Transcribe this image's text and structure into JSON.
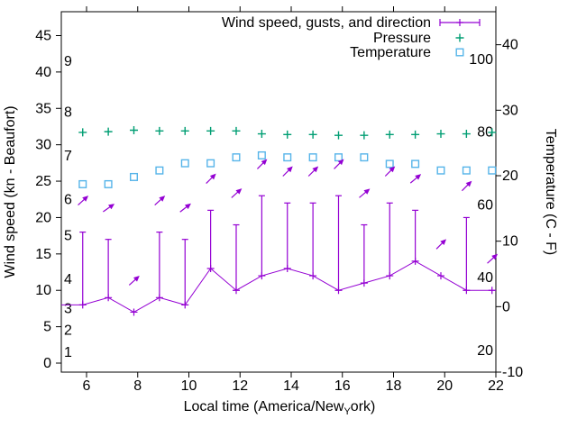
{
  "chart": {
    "legend": [
      {
        "label": "Wind speed, gusts, and direction",
        "marker": "errorbar-line",
        "color": "#9400d3"
      },
      {
        "label": "Pressure",
        "marker": "plus",
        "color": "#009e73"
      },
      {
        "label": "Temperature",
        "marker": "open-square",
        "color": "#56b4e9"
      }
    ],
    "xlabel_display": {
      "pre": "Local time (America/New",
      "subscript": "Y",
      "post": "ork)"
    },
    "ylabel_left": "Wind speed (kn - Beaufort)",
    "ylabel_right": "Temperature (C - F)"
  },
  "chart_data": {
    "type": "line",
    "title": "",
    "xlabel": "Local time (America/New_York)",
    "ylabel_left": "Wind speed (kn - Beaufort)",
    "ylabel_right": "Temperature (C - F)",
    "x_axis_hours_range": [
      5,
      22
    ],
    "x_ticks": [
      6,
      8,
      10,
      12,
      14,
      16,
      18,
      20,
      22
    ],
    "y_left_ticks_kn": [
      0,
      5,
      10,
      15,
      20,
      25,
      30,
      35,
      40,
      45
    ],
    "y_right_ticks_c": [
      -10,
      0,
      10,
      20,
      30,
      40
    ],
    "beaufort_scale_labels": [
      {
        "beaufort": "1",
        "kn": 1
      },
      {
        "beaufort": "2",
        "kn": 4
      },
      {
        "beaufort": "3",
        "kn": 7
      },
      {
        "beaufort": "4",
        "kn": 11
      },
      {
        "beaufort": "5",
        "kn": 17
      },
      {
        "beaufort": "6",
        "kn": 22
      },
      {
        "beaufort": "7",
        "kn": 28
      },
      {
        "beaufort": "8",
        "kn": 34
      },
      {
        "beaufort": "9",
        "kn": 41
      }
    ],
    "fahrenheit_scale_labels": [
      20,
      40,
      60,
      80,
      100
    ],
    "grid": "off",
    "legend_position": "top-right-inside",
    "points": {
      "hours": [
        5.85,
        6.85,
        7.85,
        8.85,
        9.85,
        10.85,
        11.85,
        12.85,
        13.85,
        14.85,
        15.85,
        16.85,
        17.85,
        18.85,
        19.85,
        20.85,
        21.85
      ],
      "wind_kn": [
        8,
        9,
        7,
        9,
        8,
        13,
        10,
        12,
        13,
        12,
        10,
        11,
        12,
        14,
        12,
        10,
        10
      ],
      "gust_kn": [
        18,
        17,
        7,
        18,
        17,
        21,
        19,
        23,
        22,
        22,
        23,
        19,
        22,
        21,
        12,
        20,
        10
      ],
      "wind_dir_arrow_deg_from_east": [
        42,
        35,
        42,
        42,
        38,
        45,
        42,
        45,
        45,
        45,
        45,
        40,
        45,
        40,
        45,
        45,
        42
      ],
      "temperature_c": [
        18.7,
        18.7,
        19.8,
        20.8,
        21.9,
        21.9,
        22.8,
        23.1,
        22.8,
        22.8,
        22.8,
        22.8,
        21.8,
        21.8,
        20.8,
        20.8,
        20.8
      ],
      "pressure_y_on_left_axis_kn": [
        31.7,
        31.8,
        32.0,
        31.9,
        31.9,
        31.9,
        31.9,
        31.5,
        31.4,
        31.4,
        31.3,
        31.3,
        31.4,
        31.4,
        31.5,
        31.5,
        31.7
      ],
      "pressure_note": "pressure series is plotted with no visible numeric scale"
    },
    "clipped_line_ends": {
      "left_border_kn": 8,
      "right_border_kn": 10
    },
    "colors": {
      "wind": "#9400d3",
      "pressure": "#009e73",
      "temperature": "#56b4e9",
      "axis": "#000000",
      "background": "#ffffff"
    }
  }
}
